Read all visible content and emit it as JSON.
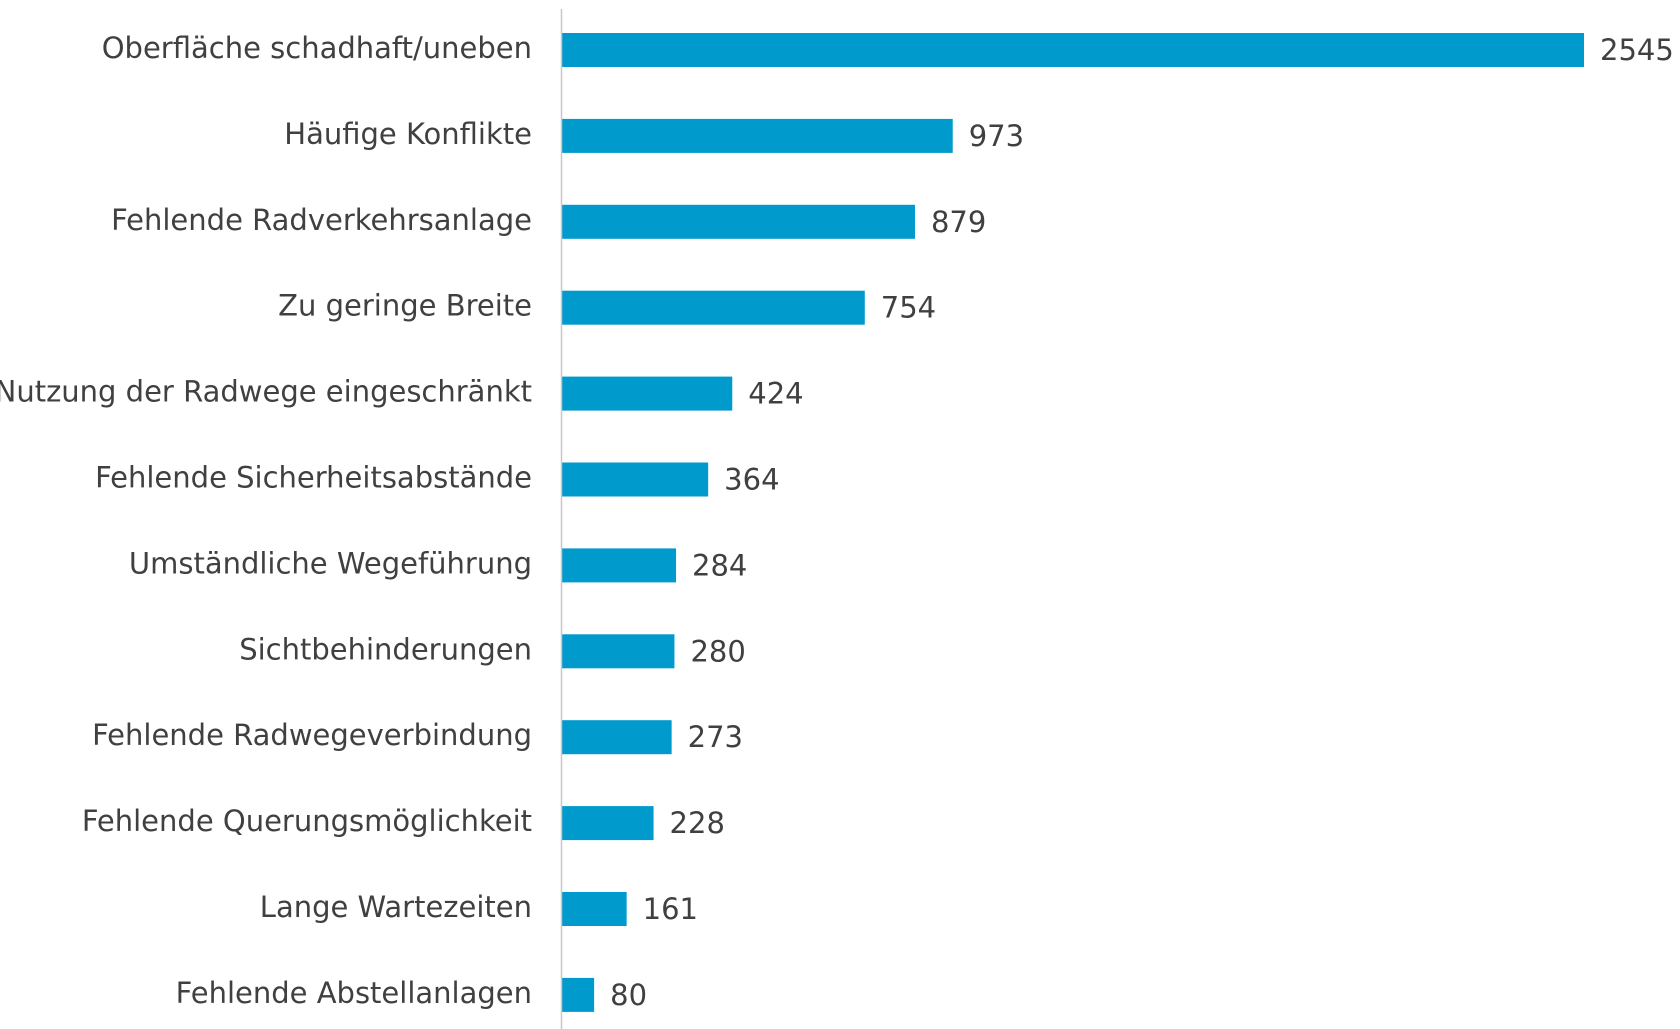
{
  "chart_data": {
    "type": "bar",
    "orientation": "horizontal",
    "categories": [
      "Oberfläche schadhaft/uneben",
      "Häufige Konflikte",
      "Fehlende Radverkehrsanlage",
      "Zu geringe Breite",
      "Nutzung der Radwege eingeschränkt",
      "Fehlende Sicherheitsabstände",
      "Umständliche Wegeführung",
      "Sichtbehinderungen",
      "Fehlende Radwegeverbindung",
      "Fehlende Querungsmöglichkeit",
      "Lange Wartezeiten",
      "Fehlende Abstellanlagen"
    ],
    "values": [
      2545,
      973,
      879,
      754,
      424,
      364,
      284,
      280,
      273,
      228,
      161,
      80
    ],
    "color": "#009acd"
  }
}
